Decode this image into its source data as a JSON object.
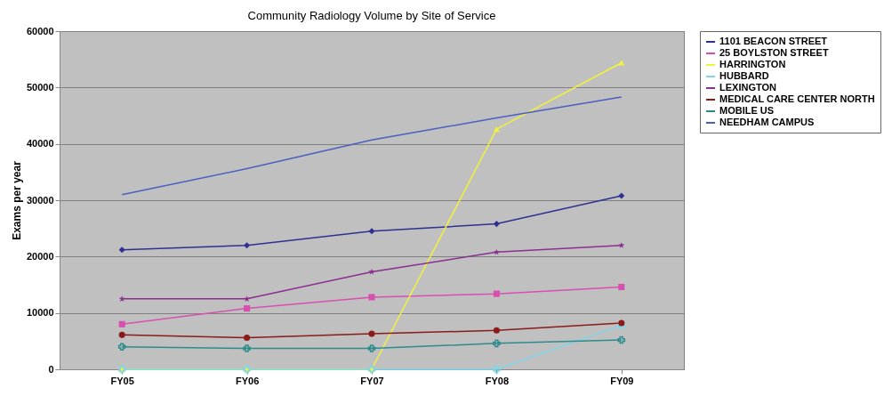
{
  "chart_data": {
    "type": "line",
    "title": "Community Radiology Volume by Site of Service",
    "ylabel": "Exams per year",
    "categories": [
      "FY05",
      "FY06",
      "FY07",
      "FY08",
      "FY09"
    ],
    "series": [
      {
        "name": "1101 BEACON STREET",
        "color": "#2e3192",
        "marker": "diamond",
        "values": [
          21200,
          22000,
          24500,
          25800,
          30800
        ]
      },
      {
        "name": "25 BOYLSTON STREET",
        "color": "#d94fb0",
        "marker": "square",
        "values": [
          8000,
          10800,
          12800,
          13400,
          14600
        ]
      },
      {
        "name": "HARRINGTON",
        "color": "#f2f23a",
        "marker": "triangle",
        "values": [
          0,
          0,
          0,
          42600,
          54400
        ]
      },
      {
        "name": "HUBBARD",
        "color": "#7fd6e8",
        "marker": "cross",
        "values": [
          0,
          0,
          0,
          0,
          7800
        ]
      },
      {
        "name": "LEXINGTON",
        "color": "#8a2e8f",
        "marker": "star",
        "values": [
          12500,
          12500,
          17300,
          20800,
          22000
        ]
      },
      {
        "name": "MEDICAL CARE CENTER NORTH",
        "color": "#8b1a1a",
        "marker": "circle",
        "values": [
          6100,
          5600,
          6300,
          6900,
          8200
        ]
      },
      {
        "name": "MOBILE US",
        "color": "#2e8b8b",
        "marker": "cross",
        "values": [
          4000,
          3700,
          3700,
          4600,
          5200
        ]
      },
      {
        "name": "NEEDHAM CAMPUS",
        "color": "#4a5fc1",
        "marker": "none",
        "values": [
          31000,
          35600,
          40700,
          44600,
          48300
        ]
      }
    ],
    "ylim": [
      0,
      60000
    ],
    "yticks": [
      0,
      10000,
      20000,
      30000,
      40000,
      50000,
      60000
    ],
    "grid": "y",
    "legend": "right"
  }
}
